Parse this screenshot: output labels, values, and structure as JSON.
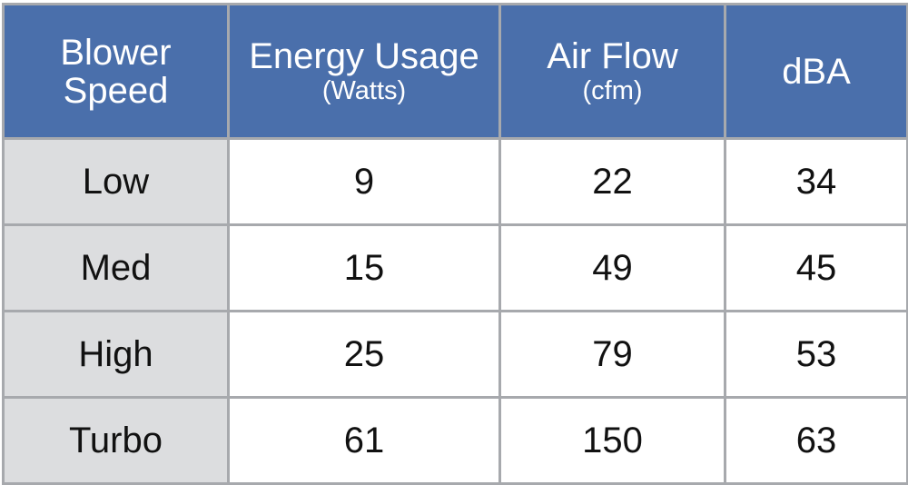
{
  "table": {
    "headers": [
      {
        "main": "Blower Speed",
        "unit": ""
      },
      {
        "main": "Energy Usage",
        "unit": "(Watts)"
      },
      {
        "main": "Air Flow",
        "unit": "(cfm)"
      },
      {
        "main": "dBA",
        "unit": ""
      }
    ],
    "rows": [
      [
        "Low",
        "9",
        "22",
        "34"
      ],
      [
        "Med",
        "15",
        "49",
        "45"
      ],
      [
        "High",
        "25",
        "79",
        "53"
      ],
      [
        "Turbo",
        "61",
        "150",
        "63"
      ]
    ]
  },
  "colors": {
    "header_bg": "#4a6fab",
    "header_text": "#ffffff",
    "row_label_bg": "#dcdddf",
    "cell_bg": "#ffffff",
    "border": "#a7a9ad"
  },
  "chart_data": {
    "type": "table",
    "columns": [
      "Blower Speed",
      "Energy Usage (Watts)",
      "Air Flow (cfm)",
      "dBA"
    ],
    "rows": [
      [
        "Low",
        9,
        22,
        34
      ],
      [
        "Med",
        15,
        49,
        45
      ],
      [
        "High",
        25,
        79,
        53
      ],
      [
        "Turbo",
        61,
        150,
        63
      ]
    ]
  }
}
